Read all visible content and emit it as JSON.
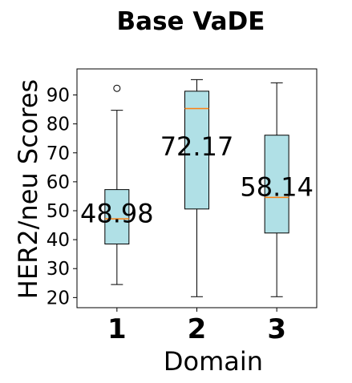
{
  "chart_data": {
    "type": "box",
    "title": "Base VaDE",
    "xlabel": "Domain",
    "ylabel": "HER2/neu Scores",
    "ylim": [
      16.5,
      99
    ],
    "yticks": [
      20,
      30,
      40,
      50,
      60,
      70,
      80,
      90
    ],
    "categories": [
      "1",
      "2",
      "3"
    ],
    "boxes": [
      {
        "category": "1",
        "whisker_low": 24.5,
        "q1": 38.5,
        "median": 47.2,
        "q3": 57.3,
        "whisker_high": 84.7,
        "outliers": [
          92.3
        ],
        "mean_label": "48.98"
      },
      {
        "category": "2",
        "whisker_low": 20.3,
        "q1": 50.6,
        "median": 85.3,
        "q3": 91.3,
        "whisker_high": 95.3,
        "outliers": [],
        "mean_label": "72.17"
      },
      {
        "category": "3",
        "whisker_low": 20.3,
        "q1": 42.3,
        "median": 54.6,
        "q3": 76.1,
        "whisker_high": 94.2,
        "outliers": [],
        "mean_label": "58.14"
      }
    ],
    "box_color": "#b0e0e6",
    "median_color": "#ff7f0e",
    "grid": false
  }
}
